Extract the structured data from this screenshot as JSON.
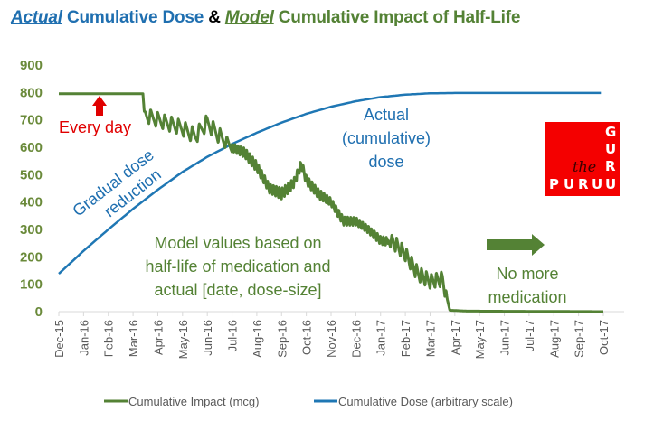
{
  "title": {
    "part1": "Actual",
    "part2": " Cumulative Dose ",
    "part3": "& ",
    "part4": "Model",
    "part5": " Cumulative Impact of Half-Life"
  },
  "colors": {
    "impact": "#548235",
    "dose": "#1f77b4",
    "annotation_red": "#e00000"
  },
  "annotations": {
    "every_day": "Every day",
    "gradual_1": "Gradual dose",
    "gradual_2": "reduction",
    "actual_1": "Actual",
    "actual_2": "(cumulative)",
    "actual_3": "dose",
    "model_1": "Model values based on",
    "model_2": "half-life of medication and",
    "model_3": "actual [date, dose-size]",
    "nomore_1": "No more",
    "nomore_2": "medication"
  },
  "logo": {
    "g": "G",
    "u1": "U",
    "r1": "R",
    "u2": "U",
    "the": "the",
    "p": "P",
    "u3": "U",
    "r2": "R",
    "u4": "U"
  },
  "chart_data": {
    "type": "line",
    "title": "Actual Cumulative Dose & Model Cumulative Impact of Half-Life",
    "xlabel": "",
    "ylabel": "",
    "ylim": [
      0,
      900
    ],
    "yticks": [
      "0",
      "100",
      "200",
      "300",
      "400",
      "500",
      "600",
      "700",
      "800",
      "900"
    ],
    "categories": [
      "Dec-15",
      "Jan-16",
      "Feb-16",
      "Mar-16",
      "Apr-16",
      "May-16",
      "Jun-16",
      "Jul-16",
      "Aug-16",
      "Sep-16",
      "Oct-16",
      "Nov-16",
      "Dec-16",
      "Jan-17",
      "Feb-17",
      "Mar-17",
      "Apr-17",
      "May-17",
      "Jun-17",
      "Jul-17",
      "Aug-17",
      "Sep-17",
      "Oct-17"
    ],
    "grid": false,
    "legend": "bottom",
    "series": [
      {
        "name": "Cumulative Impact (mcg)",
        "note": "month index (0 = Dec-15) and approximate envelope values; line oscillates with each dose",
        "points": [
          [
            0.0,
            795
          ],
          [
            3.4,
            795
          ],
          [
            3.45,
            720
          ],
          [
            4.0,
            700
          ],
          [
            5.0,
            670
          ],
          [
            5.5,
            640
          ],
          [
            6.0,
            690
          ],
          [
            6.5,
            640
          ],
          [
            7.0,
            600
          ],
          [
            7.5,
            580
          ],
          [
            8.0,
            530
          ],
          [
            8.5,
            450
          ],
          [
            9.0,
            430
          ],
          [
            9.5,
            470
          ],
          [
            9.8,
            540
          ],
          [
            10.0,
            480
          ],
          [
            10.5,
            430
          ],
          [
            11.0,
            400
          ],
          [
            11.5,
            330
          ],
          [
            12.0,
            330
          ],
          [
            12.5,
            300
          ],
          [
            13.0,
            260
          ],
          [
            13.5,
            255
          ],
          [
            14.0,
            210
          ],
          [
            14.5,
            140
          ],
          [
            15.0,
            110
          ],
          [
            15.5,
            120
          ],
          [
            15.8,
            5
          ],
          [
            16.5,
            2
          ],
          [
            22.0,
            0
          ]
        ],
        "amplitude": [
          [
            0,
            0
          ],
          [
            3.4,
            0
          ],
          [
            3.5,
            55
          ],
          [
            6.5,
            60
          ],
          [
            7,
            35
          ],
          [
            9,
            40
          ],
          [
            10,
            35
          ],
          [
            12,
            30
          ],
          [
            13.3,
            30
          ],
          [
            13.5,
            55
          ],
          [
            15.6,
            55
          ],
          [
            15.7,
            0
          ],
          [
            22,
            0
          ]
        ]
      },
      {
        "name": "Cumulative Dose (arbitrary scale)",
        "points": [
          [
            0,
            138
          ],
          [
            1,
            222
          ],
          [
            2,
            300
          ],
          [
            3,
            375
          ],
          [
            4,
            445
          ],
          [
            5,
            510
          ],
          [
            6,
            565
          ],
          [
            7,
            612
          ],
          [
            8,
            653
          ],
          [
            9,
            690
          ],
          [
            10,
            722
          ],
          [
            11,
            748
          ],
          [
            12,
            768
          ],
          [
            13,
            783
          ],
          [
            14,
            792
          ],
          [
            15,
            797
          ],
          [
            16,
            798
          ],
          [
            22,
            798
          ]
        ]
      }
    ]
  }
}
